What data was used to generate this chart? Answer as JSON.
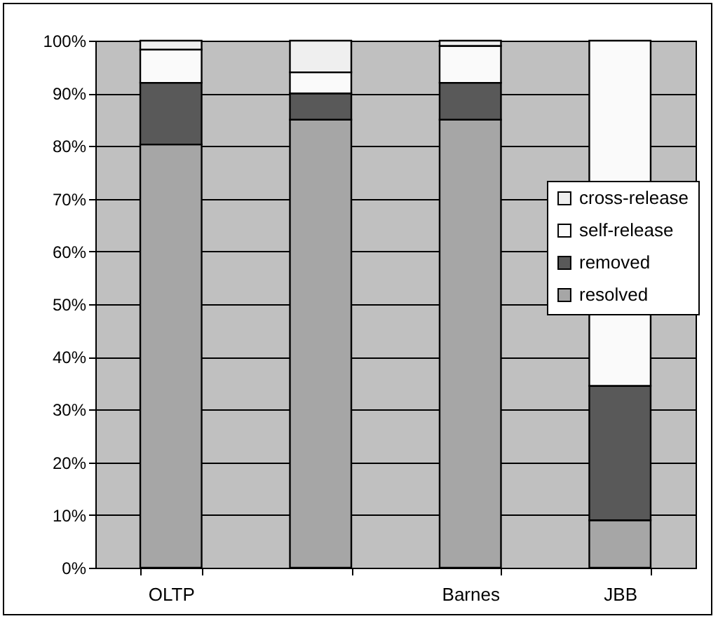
{
  "chart_data": {
    "type": "bar",
    "stacked": true,
    "categories": [
      "OLTP",
      null,
      "Barnes",
      "JBB"
    ],
    "series": [
      {
        "name": "resolved",
        "color": "#a6a6a6",
        "values": [
          80.3,
          85,
          85,
          9
        ]
      },
      {
        "name": "removed",
        "color": "#595959",
        "values": [
          11.7,
          5,
          7,
          25.5
        ]
      },
      {
        "name": "self-release",
        "color": "#fafafa",
        "values": [
          6.3,
          4,
          7,
          65.5
        ]
      },
      {
        "name": "cross-release",
        "color": "#efefef",
        "values": [
          1.7,
          6,
          1,
          null
        ]
      }
    ],
    "ylim": [
      0,
      100
    ],
    "yticks": [
      {
        "value": 0,
        "label": "0%"
      },
      {
        "value": 10,
        "label": "10%"
      },
      {
        "value": 20,
        "label": "20%"
      },
      {
        "value": 30,
        "label": "30%"
      },
      {
        "value": 40,
        "label": "40%"
      },
      {
        "value": 50,
        "label": "50%"
      },
      {
        "value": 60,
        "label": "60%"
      },
      {
        "value": 70,
        "label": "70%"
      },
      {
        "value": 80,
        "label": "80%"
      },
      {
        "value": 90,
        "label": "90%"
      },
      {
        "value": 100,
        "label": "100%"
      }
    ],
    "grid": "y",
    "legend": "right"
  }
}
